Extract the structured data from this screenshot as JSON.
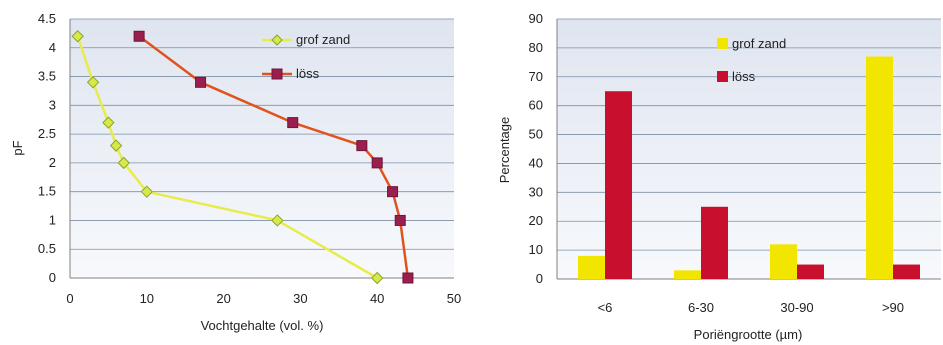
{
  "chart_data": [
    {
      "type": "line",
      "title": "",
      "xlabel": "Vochtgehalte (vol. %)",
      "ylabel": "pF",
      "xlim": [
        0,
        50
      ],
      "ylim": [
        0,
        4.5
      ],
      "x_ticks": [
        "0",
        "10",
        "20",
        "30",
        "40",
        "50"
      ],
      "y_ticks": [
        "0",
        "0.5",
        "1",
        "1.5",
        "2",
        "2.5",
        "3",
        "3.5",
        "4",
        "4.5"
      ],
      "grid": true,
      "legend_position": "top-right",
      "series": [
        {
          "name": "grof zand",
          "color": "#e6ec4a",
          "marker_fill": "#d7e84a",
          "marker_stroke": "#8aa52a",
          "marker": "diamond",
          "points": [
            [
              40,
              0
            ],
            [
              27,
              1
            ],
            [
              10,
              1.5
            ],
            [
              7,
              2
            ],
            [
              6,
              2.3
            ],
            [
              5,
              2.7
            ],
            [
              3,
              3.4
            ],
            [
              1,
              4.2
            ]
          ]
        },
        {
          "name": "löss",
          "color": "#e0531f",
          "marker_fill": "#9b1f4e",
          "marker_stroke": "#6e1638",
          "marker": "square",
          "points": [
            [
              44,
              0
            ],
            [
              43,
              1
            ],
            [
              42,
              1.5
            ],
            [
              40,
              2
            ],
            [
              38,
              2.3
            ],
            [
              29,
              2.7
            ],
            [
              17,
              3.4
            ],
            [
              9,
              4.2
            ]
          ]
        }
      ]
    },
    {
      "type": "bar",
      "title": "",
      "xlabel": "Poriëngrootte (µm)",
      "ylabel": "Percentage",
      "ylim": [
        0,
        90
      ],
      "y_ticks": [
        "0",
        "10",
        "20",
        "30",
        "40",
        "50",
        "60",
        "70",
        "80",
        "90"
      ],
      "categories": [
        "<6",
        "6-30",
        "30-90",
        ">90"
      ],
      "grid": true,
      "legend_position": "top-right",
      "series": [
        {
          "name": "grof zand",
          "color": "#f2e600",
          "values": [
            8,
            3,
            12,
            77
          ]
        },
        {
          "name": "löss",
          "color": "#c8102e",
          "values": [
            65,
            25,
            5,
            5
          ]
        }
      ]
    }
  ]
}
